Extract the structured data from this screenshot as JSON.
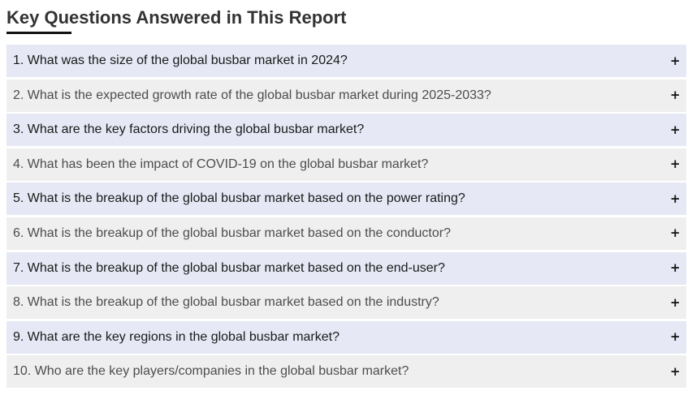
{
  "heading": "Key Questions Answered in This Report",
  "colors": {
    "heading": "#333333",
    "underline": "#111111",
    "row_odd_bg": "#e6e9f5",
    "row_even_bg": "#efefef"
  },
  "expand_icon": "plus-icon",
  "questions": [
    "1. What was the size of the global busbar market in 2024?",
    "2. What is the expected growth rate of the global busbar market during 2025-2033?",
    "3. What are the key factors driving the global busbar market?",
    "4. What has been the impact of COVID-19 on the global busbar market?",
    "5. What is the breakup of the global busbar market based on the power rating?",
    "6. What is the breakup of the global busbar market based on the conductor?",
    "7. What is the breakup of the global busbar market based on the end-user?",
    "8. What is the breakup of the global busbar market based on the industry?",
    "9. What are the key regions in the global busbar market?",
    "10. Who are the key players/companies in the global busbar market?"
  ],
  "plus_symbol": "+"
}
